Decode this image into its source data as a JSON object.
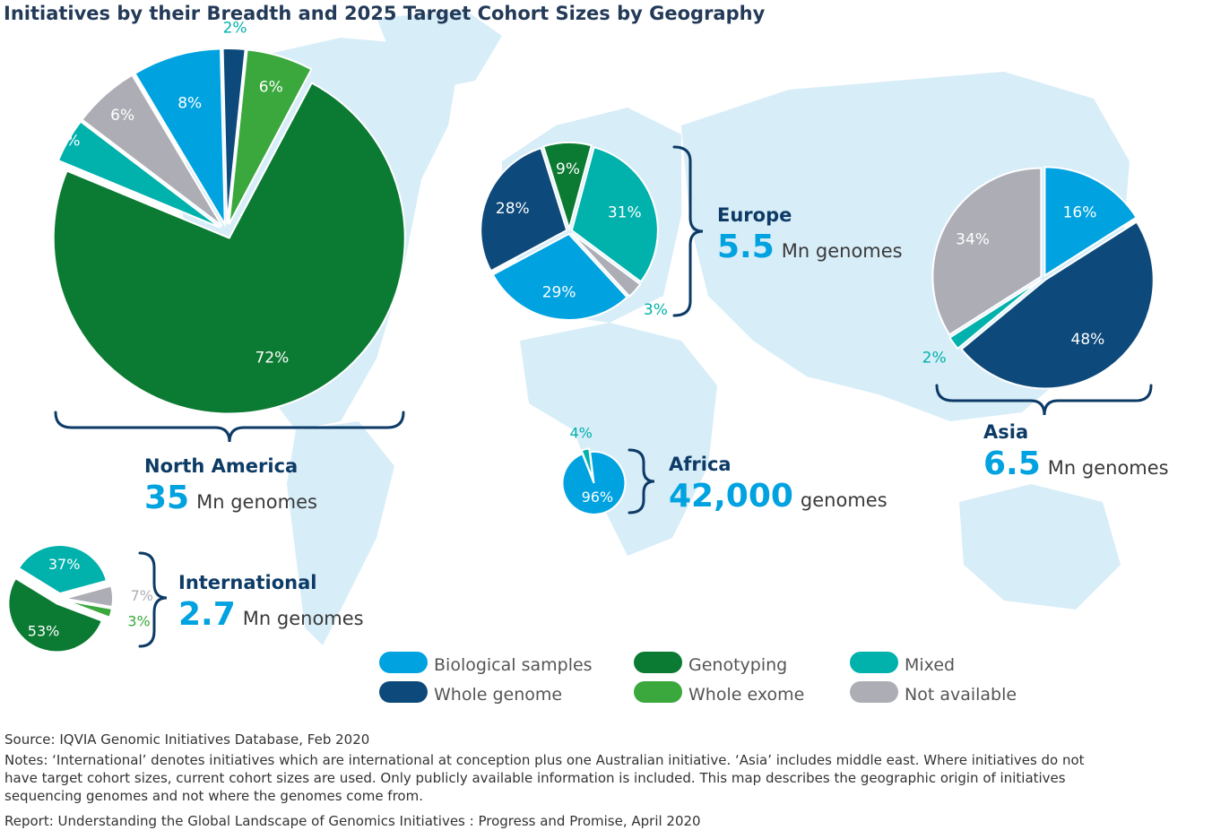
{
  "title": "Initiatives by their Breadth and 2025 Target Cohort Sizes by Geography",
  "colors": {
    "biological_samples": "#00a2e0",
    "genotyping": "#0b7a32",
    "mixed": "#00b1ac",
    "whole_genome": "#0d497a",
    "whole_exome": "#3aa83c",
    "not_available": "#adadb6"
  },
  "legend": [
    {
      "key": "biological_samples",
      "label": "Biological samples",
      "color": "#00a2e0"
    },
    {
      "key": "genotyping",
      "label": "Genotyping",
      "color": "#0b7a32"
    },
    {
      "key": "mixed",
      "label": "Mixed",
      "color": "#00b1ac"
    },
    {
      "key": "whole_genome",
      "label": "Whole genome",
      "color": "#0d497a"
    },
    {
      "key": "whole_exome",
      "label": "Whole exome",
      "color": "#3aa83c"
    },
    {
      "key": "not_available",
      "label": "Not available",
      "color": "#adadb6"
    }
  ],
  "regions": {
    "north_america": {
      "name": "North America",
      "value": "35",
      "unit": "Mn genomes"
    },
    "europe": {
      "name": "Europe",
      "value": "5.5",
      "unit": "Mn genomes"
    },
    "asia": {
      "name": "Asia",
      "value": "6.5",
      "unit": "Mn genomes"
    },
    "africa": {
      "name": "Africa",
      "value": "42,000",
      "unit": "genomes"
    },
    "international": {
      "name": "International",
      "value": "2.7",
      "unit": "Mn genomes"
    }
  },
  "chart_data": [
    {
      "type": "pie",
      "region": "North America",
      "slices": [
        {
          "category": "Genotyping",
          "value": 72,
          "label": "72%"
        },
        {
          "category": "Mixed",
          "value": 4,
          "label": "4%"
        },
        {
          "category": "Not available",
          "value": 6,
          "label": "6%"
        },
        {
          "category": "Biological samples",
          "value": 8,
          "label": "8%"
        },
        {
          "category": "Whole genome",
          "value": 2,
          "label": "2%"
        },
        {
          "category": "Whole exome",
          "value": 6,
          "label": "6%"
        }
      ]
    },
    {
      "type": "pie",
      "region": "Europe",
      "slices": [
        {
          "category": "Mixed",
          "value": 31,
          "label": "31%"
        },
        {
          "category": "Not available",
          "value": 3,
          "label": "3%"
        },
        {
          "category": "Biological samples",
          "value": 29,
          "label": "29%"
        },
        {
          "category": "Whole genome",
          "value": 28,
          "label": "28%"
        },
        {
          "category": "Genotyping",
          "value": 9,
          "label": "9%"
        }
      ]
    },
    {
      "type": "pie",
      "region": "Asia",
      "slices": [
        {
          "category": "Biological samples",
          "value": 16,
          "label": "16%"
        },
        {
          "category": "Whole genome",
          "value": 48,
          "label": "48%"
        },
        {
          "category": "Mixed",
          "value": 2,
          "label": "2%"
        },
        {
          "category": "Not available",
          "value": 34,
          "label": "34%"
        }
      ]
    },
    {
      "type": "pie",
      "region": "Africa",
      "slices": [
        {
          "category": "Biological samples",
          "value": 96,
          "label": "96%"
        },
        {
          "category": "Mixed",
          "value": 4,
          "label": "4%"
        }
      ]
    },
    {
      "type": "pie",
      "region": "International",
      "slices": [
        {
          "category": "Whole exome",
          "value": 3,
          "label": "3%"
        },
        {
          "category": "Genotyping",
          "value": 53,
          "label": "53%"
        },
        {
          "category": "Mixed",
          "value": 37,
          "label": "37%"
        },
        {
          "category": "Not available",
          "value": 7,
          "label": "7%"
        }
      ]
    }
  ],
  "footer": {
    "source": "Source: IQVIA Genomic Initiatives Database, Feb 2020",
    "notes": [
      "Notes: ‘International’ denotes initiatives which are international at conception plus one Australian initiative. ‘Asia’ includes middle east. Where initiatives do not",
      "have target cohort sizes, current cohort sizes are used. Only publicly available information is included. This map describes the geographic origin of initiatives",
      "sequencing genomes and not where the genomes come from."
    ],
    "report": "Report: Understanding the Global Landscape of Genomics Initiatives : Progress and Promise, April 2020"
  }
}
